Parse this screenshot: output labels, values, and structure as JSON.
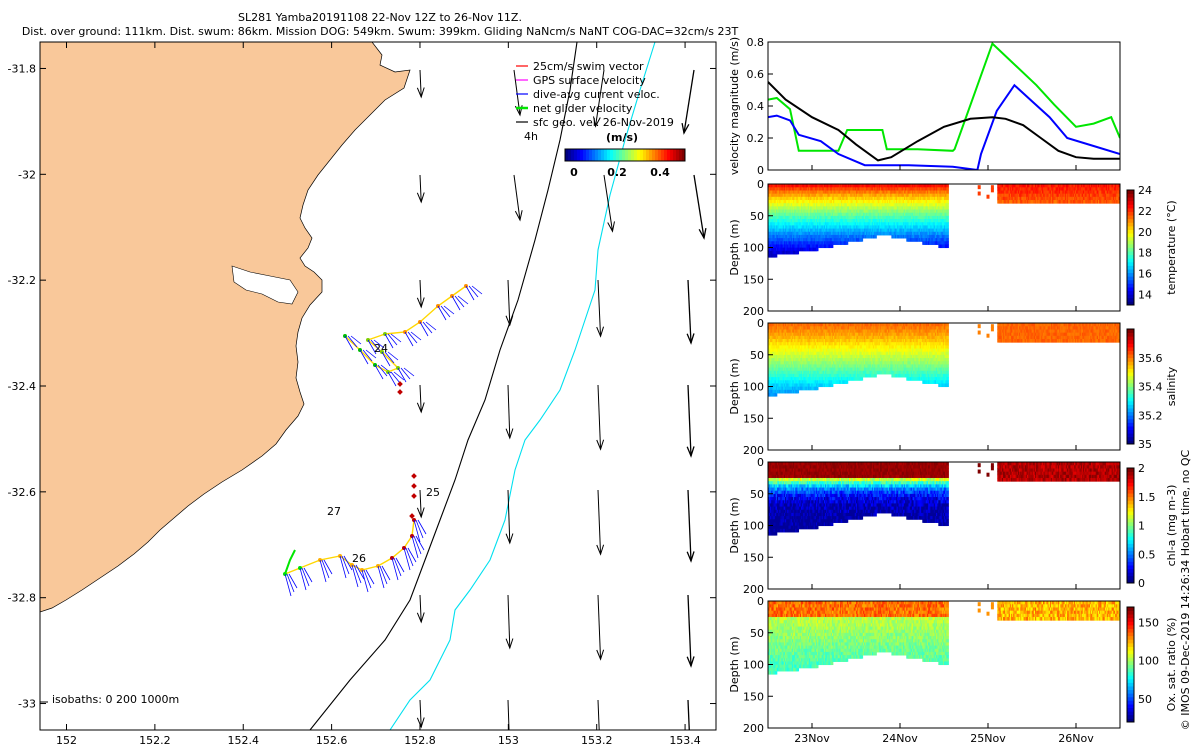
{
  "header": {
    "title": "SL281 Yamba20191108 22-Nov 12Z to 26-Nov 11Z.",
    "subtitle": "Dist. over ground: 111km. Dist. swum: 86km. Mission DOG: 549km. Swum: 399km. Gliding NaNcm/s NaNT COG-DAC=32cm/s 23T"
  },
  "map": {
    "legend": [
      {
        "label": "25cm/s swim vector",
        "color": "#ff0000"
      },
      {
        "label": "GPS surface velocity",
        "color": "#ff00ff"
      },
      {
        "label": "dive-avg current veloc.",
        "color": "#0000ff"
      },
      {
        "label": "net glider velocity",
        "color": "#00e600"
      },
      {
        "label": "sfc geo. vel. 26-Nov-2019",
        "color": "#000000"
      }
    ],
    "legend_4h": "4h",
    "colorbar_title": "(m/s)",
    "colorbar_ticks": [
      "0",
      "0.2",
      "0.4"
    ],
    "isobaths_label": "isobaths: 0   200  1000m",
    "day_labels": [
      "24",
      "25",
      "26",
      "27"
    ],
    "xticks": [
      "152",
      "152.2",
      "152.4",
      "152.6",
      "152.8",
      "153",
      "153.2",
      "153.4"
    ],
    "yticks": [
      "-31.8",
      "-32",
      "-32.2",
      "-32.4",
      "-32.6",
      "-32.8",
      "-33"
    ],
    "colors": {
      "land": "#f9c89a",
      "isobath_200": "#000000",
      "isobath_1000": "#00e0ef"
    }
  },
  "side_note": "© IMOS 09-Dec-2019 14:26:34 Hobart time, no QC",
  "chart_data": [
    {
      "type": "line",
      "ylabel": "velocity magnitude (m/s)",
      "ylim": [
        0,
        0.8
      ],
      "yticks": [
        "0",
        "0.2",
        "0.4",
        "0.6",
        "0.8"
      ],
      "xlim": [
        22.5,
        26.5
      ],
      "series": [
        {
          "color": "#00e600",
          "x": [
            22.5,
            22.6,
            22.75,
            22.85,
            23.3,
            23.4,
            23.8,
            23.85,
            24.2,
            24.6,
            24.62,
            25.05,
            25.55,
            25.75,
            26.0,
            26.2,
            26.4,
            26.5
          ],
          "y": [
            0.44,
            0.45,
            0.38,
            0.12,
            0.12,
            0.25,
            0.25,
            0.13,
            0.13,
            0.12,
            0.13,
            0.79,
            0.53,
            0.41,
            0.27,
            0.29,
            0.33,
            0.2
          ]
        },
        {
          "color": "#0000ff",
          "x": [
            22.5,
            22.6,
            22.75,
            22.85,
            23.1,
            23.3,
            23.6,
            23.7,
            24.1,
            24.6,
            24.88,
            24.92,
            25.1,
            25.3,
            25.5,
            25.7,
            25.9,
            26.2,
            26.5
          ],
          "y": [
            0.33,
            0.34,
            0.31,
            0.22,
            0.18,
            0.1,
            0.03,
            0.03,
            0.03,
            0.02,
            0.0,
            0.1,
            0.37,
            0.53,
            0.43,
            0.33,
            0.2,
            0.15,
            0.1
          ]
        },
        {
          "color": "#000000",
          "x": [
            22.5,
            22.7,
            23.0,
            23.3,
            23.5,
            23.75,
            23.9,
            24.2,
            24.5,
            24.8,
            25.05,
            25.2,
            25.4,
            25.6,
            25.8,
            26.0,
            26.2,
            26.5
          ],
          "y": [
            0.55,
            0.44,
            0.33,
            0.25,
            0.16,
            0.06,
            0.08,
            0.18,
            0.27,
            0.32,
            0.33,
            0.32,
            0.28,
            0.2,
            0.12,
            0.08,
            0.07,
            0.07
          ]
        }
      ]
    },
    {
      "type": "heatmap",
      "ylabel": "Depth (m)",
      "colorbar_label": "temperature (°C)",
      "ylim": [
        200,
        0
      ],
      "yticks": [
        "0",
        "50",
        "100",
        "150",
        "200"
      ],
      "clim": [
        13,
        24
      ],
      "cticks": [
        "14",
        "16",
        "18",
        "20",
        "22",
        "24"
      ],
      "surface_value": 23.0,
      "deep_value": 13.8,
      "xticklabels": [
        "23Nov",
        "24Nov",
        "25Nov",
        "26Nov"
      ]
    },
    {
      "type": "heatmap",
      "ylabel": "Depth (m)",
      "colorbar_label": "salinity",
      "ylim": [
        200,
        0
      ],
      "yticks": [
        "0",
        "50",
        "100",
        "150",
        "200"
      ],
      "clim": [
        35.0,
        35.8
      ],
      "cticks": [
        "35",
        "35.2",
        "35.4",
        "35.6"
      ],
      "surface_value": 35.62,
      "deep_value": 35.22,
      "xticklabels": [
        "23Nov",
        "24Nov",
        "25Nov",
        "26Nov"
      ]
    },
    {
      "type": "heatmap",
      "ylabel": "Depth (m)",
      "colorbar_label": "chl-a (mg m-3)",
      "ylim": [
        200,
        0
      ],
      "yticks": [
        "0",
        "50",
        "100",
        "150",
        "200"
      ],
      "clim": [
        0,
        2
      ],
      "cticks": [
        "0",
        "0.5",
        "1",
        "1.5",
        "2"
      ],
      "surface_value": 2.0,
      "deep_value": 0.15,
      "xticklabels": [
        "23Nov",
        "24Nov",
        "25Nov",
        "26Nov"
      ]
    },
    {
      "type": "heatmap",
      "ylabel": "Depth (m)",
      "colorbar_label": "Ox. sat. ratio (%)",
      "ylim": [
        200,
        0
      ],
      "yticks": [
        "0",
        "50",
        "100",
        "150",
        "200"
      ],
      "clim": [
        20,
        170
      ],
      "cticks": [
        "50",
        "100",
        "150"
      ],
      "surface_value": 120,
      "deep_value": 90,
      "xticklabels": [
        "23Nov",
        "24Nov",
        "25Nov",
        "26Nov"
      ]
    }
  ]
}
